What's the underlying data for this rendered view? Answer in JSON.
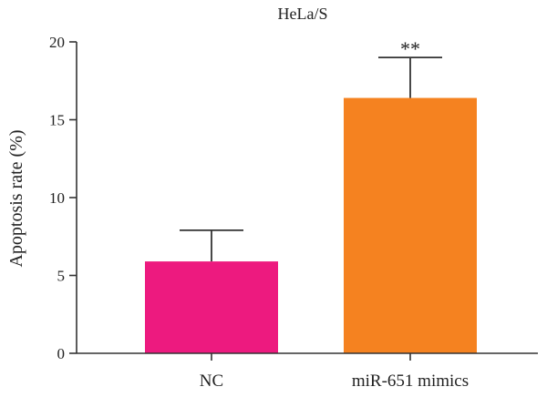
{
  "chart_data": {
    "type": "bar",
    "title": "HeLa/S",
    "xlabel": "",
    "ylabel": "Apoptosis rate (%)",
    "ylim": [
      0,
      20
    ],
    "yticks": [
      0,
      5,
      10,
      15,
      20
    ],
    "categories": [
      "NC",
      "miR-651 mimics"
    ],
    "values": [
      5.9,
      16.4
    ],
    "errors": [
      2.0,
      2.6
    ],
    "bar_colors": [
      "#ED1A7F",
      "#F58220"
    ],
    "significance": [
      "",
      "**"
    ],
    "grid": false,
    "legend": "none"
  }
}
